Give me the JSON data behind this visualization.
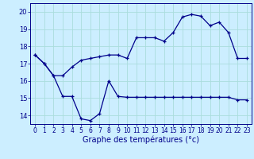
{
  "xlabel": "Graphe des températures (°c)",
  "background_color": "#cceeff",
  "grid_color": "#aadddd",
  "line_color": "#00008b",
  "hours": [
    0,
    1,
    2,
    3,
    4,
    5,
    6,
    7,
    8,
    9,
    10,
    11,
    12,
    13,
    14,
    15,
    16,
    17,
    18,
    19,
    20,
    21,
    22,
    23
  ],
  "line_upper": [
    17.5,
    17.0,
    16.3,
    16.3,
    16.8,
    17.2,
    17.3,
    17.4,
    17.5,
    17.5,
    17.3,
    18.5,
    18.5,
    18.5,
    18.3,
    18.8,
    19.7,
    19.85,
    19.75,
    19.2,
    19.4,
    18.8,
    17.3,
    17.3
  ],
  "line_lower": [
    17.5,
    17.0,
    16.3,
    15.1,
    15.1,
    13.8,
    13.7,
    14.1,
    16.0,
    15.1,
    15.05,
    15.05,
    15.05,
    15.05,
    15.05,
    15.05,
    15.05,
    15.05,
    15.05,
    15.05,
    15.05,
    15.05,
    14.9,
    14.9
  ],
  "ylim": [
    13.5,
    20.5
  ],
  "yticks": [
    14,
    15,
    16,
    17,
    18,
    19,
    20
  ],
  "xlim": [
    -0.5,
    23.5
  ],
  "xlabel_fontsize": 7,
  "tick_fontsize": 5.5,
  "ytick_fontsize": 6
}
